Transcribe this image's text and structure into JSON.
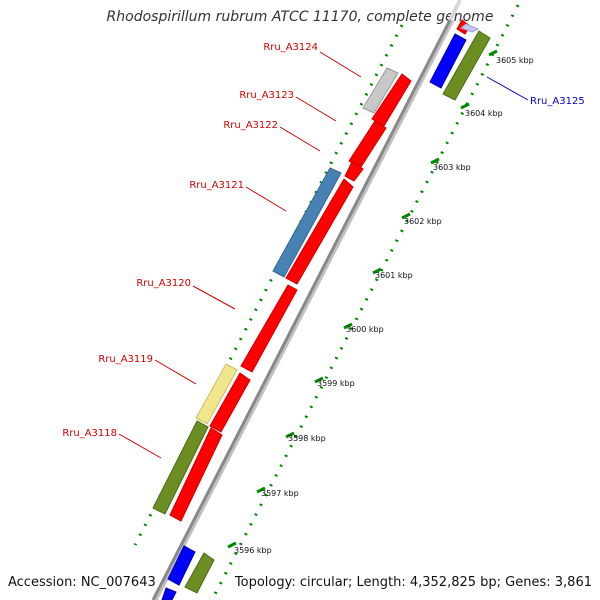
{
  "title": "Rhodospirillum rubrum ATCC 11170, complete genome",
  "footer": {
    "accession": "Accession: NC_007643",
    "topology": "Topology: circular; Length: 4,352,825 bp; Genes: 3,861"
  },
  "colors": {
    "red_gene": "#ff0000",
    "blue_gene": "#0000ff",
    "green_gene": "#6b8e23",
    "steelblue_gene": "#4682b4",
    "khaki_gene": "#f0e68c",
    "grey_gene": "#c8c8c8",
    "backbone": "#888888",
    "dots": "#008800",
    "label_red": "#d40000",
    "label_blue": "#0000cc"
  },
  "genes": [
    {
      "name": "Rru_A3124",
      "label": "Rru_A3124"
    },
    {
      "name": "Rru_A3123",
      "label": "Rru_A3123"
    },
    {
      "name": "Rru_A3122",
      "label": "Rru_A3122"
    },
    {
      "name": "Rru_A3121",
      "label": "Rru_A3121"
    },
    {
      "name": "Rru_A3120",
      "label": "Rru_A3120"
    },
    {
      "name": "Rru_A3119",
      "label": "Rru_A3119"
    },
    {
      "name": "Rru_A3118",
      "label": "Rru_A3118"
    },
    {
      "name": "Rru_A3125",
      "label": "Rru_A3125"
    }
  ],
  "ticks": [
    "3605 kbp",
    "3604 kbp",
    "3603 kbp",
    "3602 kbp",
    "3601 kbp",
    "3600 kbp",
    "3599 kbp",
    "3598 kbp",
    "3597 kbp",
    "3596 kbp"
  ]
}
